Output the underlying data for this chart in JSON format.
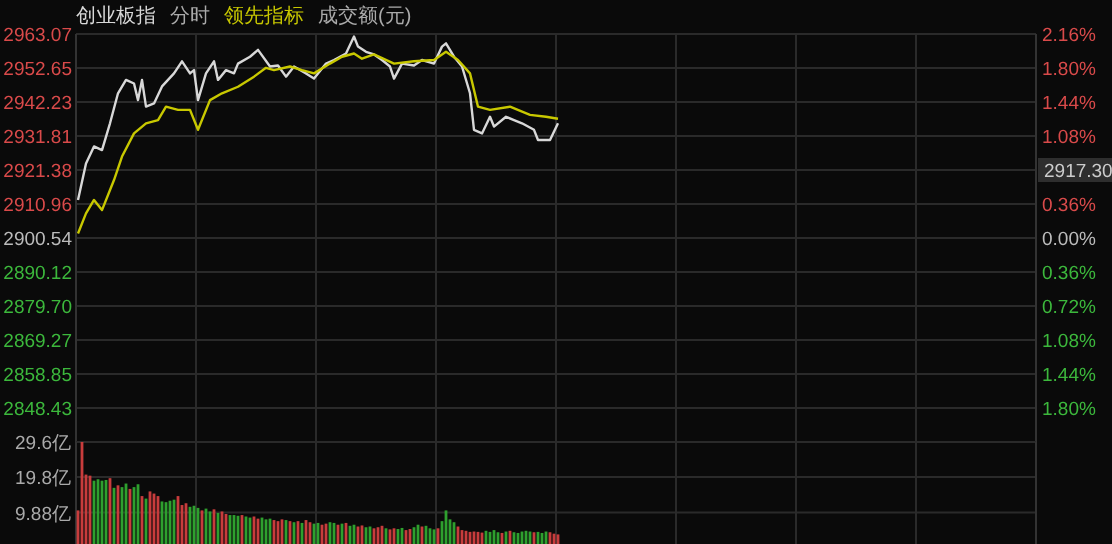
{
  "chart_data": [
    {
      "type": "line",
      "annotations": [
        "分时",
        "成交额(元)",
        "2917.30"
      ],
      "categories": [
        null,
        null,
        null,
        null,
        null,
        null,
        null,
        null,
        null,
        null,
        null,
        null,
        null,
        null,
        null,
        null,
        null,
        null,
        null,
        null,
        null,
        null,
        null,
        null,
        null,
        null,
        null,
        null,
        null,
        null,
        null,
        null,
        null,
        null,
        null,
        null,
        null,
        null,
        null,
        null,
        null,
        null,
        null,
        null,
        null,
        null,
        null,
        null,
        null,
        null,
        null,
        null,
        null,
        null,
        null,
        null,
        null,
        null,
        null,
        null,
        null,
        null,
        null,
        null,
        null,
        null,
        null,
        null,
        null,
        null,
        null,
        null,
        null,
        null,
        null,
        null,
        null,
        null,
        null,
        null,
        null,
        null,
        null,
        null,
        null,
        null,
        null,
        null,
        null,
        null,
        null,
        null,
        null,
        null,
        null,
        null,
        null,
        null,
        null,
        null,
        null,
        null,
        null,
        null,
        null,
        null,
        null,
        null,
        null,
        null,
        null,
        null,
        null,
        null,
        null,
        null,
        null,
        null,
        null,
        null,
        null,
        null,
        null,
        null,
        null,
        null,
        null,
        null,
        null,
        null,
        null,
        null,
        null,
        null,
        null,
        null,
        null,
        null,
        null,
        null,
        null,
        null,
        null,
        null,
        null,
        null,
        null,
        null,
        null,
        null,
        null,
        null,
        null,
        null,
        null,
        null,
        null,
        null,
        null,
        null,
        null,
        null,
        null,
        null,
        null,
        null,
        null,
        null,
        null,
        null,
        null,
        null,
        null,
        null,
        null,
        null,
        null,
        null,
        null,
        null,
        null,
        null,
        null,
        null,
        null,
        null,
        null,
        null,
        null,
        null,
        null,
        null,
        null,
        null,
        null,
        null,
        null,
        null,
        null,
        null,
        null,
        null,
        null,
        null,
        null,
        null,
        null,
        null,
        null,
        null,
        null,
        null,
        null,
        null,
        null,
        null,
        null,
        null,
        null,
        null,
        null,
        null,
        null,
        null,
        null,
        null,
        null,
        null,
        null,
        null,
        null,
        null,
        null,
        null,
        null,
        null,
        null,
        null,
        null,
        null
      ],
      "series": [
        {
          "name": "创业板指",
          "color": "#d8d8d8",
          "values": [
            2912.2,
            null,
            2923.4,
            null,
            2928.6,
            null,
            2927.5,
            null,
            2935.7,
            null,
            2944.9,
            null,
            2949.0,
            null,
            2947.9,
            2942.8,
            2949.0,
            2940.8,
            null,
            2941.8,
            null,
            2947.0,
            null,
            null,
            2951.0,
            null,
            2954.7,
            null,
            2951.0,
            2952.0,
            2942.8,
            null,
            2951.0,
            null,
            2954.7,
            2949.0,
            null,
            2952.0,
            null,
            2951.0,
            2954.0,
            null,
            null,
            2956.1,
            null,
            2958.2,
            null,
            null,
            2953.1,
            null,
            2953.4,
            null,
            2950.0,
            null,
            2953.1,
            null,
            null,
            2951.0,
            null,
            2949.4,
            null,
            null,
            2954.0,
            null,
            2955.1,
            null,
            null,
            2957.1,
            null,
            2962.3,
            2959.2,
            null,
            2957.6,
            null,
            2956.8,
            null,
            2955.1,
            null,
            2953.1,
            2949.4,
            null,
            2954.0,
            null,
            null,
            2953.4,
            null,
            2955.1,
            null,
            null,
            2954.0,
            null,
            2959.2,
            2960.2,
            null,
            2956.1,
            null,
            2953.1,
            null,
            2944.9,
            2933.7,
            null,
            2932.6,
            null,
            2937.7,
            2934.7,
            null,
            null,
            2937.7,
            null,
            2936.7,
            null,
            2935.7,
            null,
            null,
            2933.7,
            2930.6,
            null,
            null,
            2930.6,
            null,
            2935.7,
            null,
            null,
            null,
            null,
            null,
            null,
            null,
            null,
            null,
            null,
            null,
            null,
            null,
            null,
            null,
            null,
            null,
            null,
            null,
            null,
            null,
            null,
            null,
            null,
            null,
            null,
            null,
            null,
            null,
            null,
            null,
            null,
            null,
            null,
            null,
            null,
            null,
            null,
            null,
            null,
            null,
            null,
            null,
            null,
            null,
            null,
            null,
            null,
            null,
            null,
            null,
            null,
            null,
            null,
            null,
            null,
            null,
            null,
            null,
            null,
            null,
            null,
            null,
            null,
            null,
            null,
            null,
            null,
            null,
            null,
            null,
            null,
            null,
            null,
            null,
            null,
            null,
            null,
            null,
            null,
            null,
            null,
            null,
            null,
            null,
            null,
            null,
            null,
            null,
            null,
            null,
            null,
            null,
            null,
            null,
            null,
            null,
            null,
            null,
            null,
            null,
            null,
            null,
            null,
            null,
            null,
            null,
            null,
            null,
            null,
            null,
            null,
            null,
            null,
            null,
            null,
            null,
            null,
            null
          ]
        },
        {
          "name": "领先指标",
          "color": "#c8c800",
          "values": [
            2901.9,
            null,
            2908.1,
            null,
            2912.2,
            null,
            2909.1,
            null,
            null,
            2918.3,
            null,
            2925.5,
            null,
            null,
            2932.6,
            null,
            null,
            2935.7,
            null,
            null,
            2936.7,
            null,
            2940.8,
            null,
            null,
            2939.8,
            null,
            null,
            2939.8,
            null,
            2933.7,
            null,
            null,
            2942.8,
            null,
            null,
            2944.9,
            null,
            null,
            null,
            2946.9,
            null,
            null,
            null,
            2950.0,
            null,
            null,
            2952.7,
            null,
            2952.0,
            null,
            null,
            null,
            2953.1,
            null,
            null,
            2952.0,
            null,
            null,
            2951.0,
            null,
            null,
            null,
            2954.0,
            null,
            null,
            2956.1,
            null,
            null,
            2957.1,
            null,
            2955.5,
            null,
            null,
            2956.8,
            null,
            null,
            null,
            null,
            2954.0,
            null,
            null,
            null,
            null,
            2954.7,
            null,
            null,
            null,
            null,
            2955.1,
            null,
            null,
            2957.6,
            null,
            null,
            2955.1,
            null,
            null,
            2951.0,
            null,
            2940.8,
            null,
            null,
            2939.8,
            null,
            null,
            null,
            null,
            2940.8,
            null,
            null,
            null,
            null,
            2938.3,
            null,
            null,
            null,
            2937.7,
            null,
            null,
            2937.1,
            null,
            null,
            null,
            null,
            null,
            null,
            null,
            null,
            null,
            null,
            null,
            null,
            null,
            null,
            null,
            null,
            null,
            null,
            null,
            null,
            null,
            null,
            null,
            null,
            null,
            null,
            null,
            null,
            null,
            null,
            null,
            null,
            null,
            null,
            null,
            null,
            null,
            null,
            null,
            null,
            null,
            null,
            null,
            null,
            null,
            null,
            null,
            null,
            null,
            null,
            null,
            null,
            null,
            null,
            null,
            null,
            null,
            null,
            null,
            null,
            null,
            null,
            null,
            null,
            null,
            null,
            null,
            null,
            null,
            null,
            null,
            null,
            null,
            null,
            null,
            null,
            null,
            null,
            null,
            null,
            null,
            null,
            null,
            null,
            null,
            null,
            null,
            null,
            null,
            null,
            null,
            null,
            null,
            null,
            null,
            null,
            null,
            null,
            null,
            null,
            null,
            null,
            null,
            null,
            null,
            null,
            null,
            null,
            null,
            null,
            null,
            null,
            null,
            null,
            null,
            null,
            null,
            null,
            null
          ]
        }
      ],
      "ylim": [
        2838.01,
        2963.07
      ],
      "yticks": [
        {
          "value": 2963.07,
          "label": "2963.07"
        },
        {
          "value": 2952.65,
          "label": "2952.65"
        },
        {
          "value": 2942.23,
          "label": "2942.23"
        },
        {
          "value": 2931.81,
          "label": "2931.81"
        },
        {
          "value": 2921.38,
          "label": "2921.38"
        },
        {
          "value": 2910.96,
          "label": "2910.96"
        },
        {
          "value": 2900.54,
          "label": "2900.54"
        },
        {
          "value": 2890.12,
          "label": "2890.12"
        },
        {
          "value": 2879.7,
          "label": "2879.70"
        },
        {
          "value": 2869.27,
          "label": "2869.27"
        },
        {
          "value": 2858.85,
          "label": "2858.85"
        },
        {
          "value": 2848.43,
          "label": "2848.43"
        }
      ],
      "y2lim": [
        -2.16,
        2.16
      ],
      "y2ticks": [
        {
          "value": 2.16,
          "label": "2.16%"
        },
        {
          "value": 1.8,
          "label": "1.80%"
        },
        {
          "value": 1.44,
          "label": "1.44%"
        },
        {
          "value": 1.08,
          "label": "1.08%"
        },
        {
          "value": 0.36,
          "label": "0.36%"
        },
        {
          "value": 0,
          "label": "0.00%"
        },
        {
          "value": -0.36,
          "label": "0.36%"
        },
        {
          "value": -0.72,
          "label": "0.72%"
        },
        {
          "value": -1.08,
          "label": "1.08%"
        },
        {
          "value": -1.44,
          "label": "1.44%"
        },
        {
          "value": -1.8,
          "label": "1.80%"
        }
      ],
      "grid": true,
      "tick_labels": "y"
    },
    {
      "type": "bar",
      "categories": [
        null,
        null,
        null,
        null,
        null,
        null,
        null,
        null,
        null,
        null,
        null,
        null,
        null,
        null,
        null,
        null,
        null,
        null,
        null,
        null,
        null,
        null,
        null,
        null,
        null,
        null,
        null,
        null,
        null,
        null,
        null,
        null,
        null,
        null,
        null,
        null,
        null,
        null,
        null,
        null,
        null,
        null,
        null,
        null,
        null,
        null,
        null,
        null,
        null,
        null,
        null,
        null,
        null,
        null,
        null,
        null,
        null,
        null,
        null,
        null,
        null,
        null,
        null,
        null,
        null,
        null,
        null,
        null,
        null,
        null,
        null,
        null,
        null,
        null,
        null,
        null,
        null,
        null,
        null,
        null,
        null,
        null,
        null,
        null,
        null,
        null,
        null,
        null,
        null,
        null,
        null,
        null,
        null,
        null,
        null,
        null,
        null,
        null,
        null,
        null,
        null,
        null,
        null,
        null,
        null,
        null,
        null,
        null,
        null,
        null,
        null,
        null,
        null,
        null,
        null,
        null,
        null,
        null,
        null,
        null,
        null,
        null,
        null,
        null,
        null,
        null,
        null,
        null,
        null,
        null,
        null,
        null,
        null,
        null,
        null,
        null,
        null,
        null,
        null,
        null,
        null,
        null,
        null,
        null,
        null,
        null,
        null,
        null,
        null,
        null,
        null,
        null,
        null,
        null,
        null,
        null,
        null,
        null,
        null,
        null,
        null,
        null,
        null,
        null,
        null,
        null,
        null,
        null,
        null,
        null,
        null,
        null,
        null,
        null,
        null,
        null,
        null,
        null,
        null,
        null,
        null,
        null,
        null,
        null,
        null,
        null,
        null,
        null,
        null,
        null,
        null,
        null,
        null,
        null,
        null,
        null,
        null,
        null,
        null,
        null,
        null,
        null,
        null,
        null,
        null,
        null,
        null,
        null,
        null,
        null,
        null,
        null,
        null,
        null,
        null,
        null,
        null,
        null,
        null,
        null,
        null,
        null,
        null,
        null,
        null,
        null,
        null,
        null,
        null,
        null,
        null,
        null,
        null,
        null,
        null,
        null,
        null,
        null,
        null,
        null
      ],
      "values": [
        10.5,
        29.6,
        20.5,
        20.2,
        18.8,
        19.2,
        18.8,
        19.0,
        19.5,
        16.8,
        17.5,
        17.0,
        18.0,
        16.5,
        17.0,
        17.8,
        14.5,
        13.8,
        15.8,
        15.2,
        14.5,
        13.0,
        12.8,
        13.2,
        13.5,
        14.5,
        12.0,
        12.5,
        11.5,
        11.8,
        11.2,
        10.5,
        11.0,
        10.2,
        10.8,
        9.8,
        10.2,
        9.5,
        9.2,
        9.2,
        9.0,
        9.2,
        8.8,
        8.5,
        8.8,
        8.2,
        8.5,
        8.0,
        8.2,
        7.8,
        7.5,
        8.0,
        7.8,
        7.5,
        7.2,
        7.5,
        7.0,
        7.8,
        7.2,
        6.8,
        7.0,
        6.5,
        6.8,
        7.2,
        7.0,
        6.5,
        6.8,
        7.0,
        6.2,
        6.5,
        6.0,
        6.3,
        5.8,
        6.0,
        5.5,
        5.8,
        6.2,
        5.5,
        5.2,
        5.5,
        5.3,
        5.6,
        5.0,
        5.3,
        5.8,
        6.5,
        6.0,
        6.2,
        5.5,
        5.2,
        5.5,
        7.5,
        10.5,
        8.0,
        7.2,
        6.0,
        5.0,
        4.8,
        4.5,
        4.6,
        4.5,
        4.3,
        4.8,
        4.5,
        5.0,
        4.4,
        4.2,
        4.6,
        4.8,
        4.4,
        4.2,
        4.6,
        4.8,
        4.6,
        4.4,
        4.5,
        4.2,
        4.6,
        4.4,
        4.0,
        3.8,
        null,
        null,
        null,
        null,
        null,
        null,
        null,
        null,
        null,
        null,
        null,
        null,
        null,
        null,
        null,
        null,
        null,
        null,
        null,
        null,
        null,
        null,
        null,
        null,
        null,
        null,
        null,
        null,
        null,
        null,
        null,
        null,
        null,
        null,
        null,
        null,
        null,
        null,
        null,
        null,
        null,
        null,
        null,
        null,
        null,
        null,
        null,
        null,
        null,
        null,
        null,
        null,
        null,
        null,
        null,
        null,
        null,
        null,
        null,
        null,
        null,
        null,
        null,
        null,
        null,
        null,
        null,
        null,
        null,
        null,
        null,
        null,
        null,
        null,
        null,
        null,
        null,
        null,
        null,
        null,
        null,
        null,
        null,
        null,
        null,
        null,
        null,
        null,
        null,
        null,
        null,
        null,
        null,
        null,
        null,
        null,
        null,
        null,
        null,
        null,
        null,
        null,
        null,
        null,
        null,
        null,
        null,
        null,
        null,
        null,
        null,
        null,
        null,
        null,
        null,
        null,
        null,
        null,
        null
      ],
      "colors": [
        "#c83c3c",
        "#c83c3c",
        "#c83c3c",
        "#c83c3c",
        "#2ea02e",
        "#2ea02e",
        "#2ea02e",
        "#2ea02e",
        "#c83c3c",
        "#2ea02e",
        "#c83c3c",
        "#2ea02e",
        "#2ea02e",
        "#c83c3c",
        "#2ea02e",
        "#2ea02e",
        "#c83c3c",
        "#2ea02e",
        "#c83c3c",
        "#c83c3c",
        "#c83c3c",
        "#2ea02e",
        "#2ea02e",
        "#2ea02e",
        "#2ea02e",
        "#c83c3c",
        "#c83c3c",
        "#c83c3c",
        "#2ea02e",
        "#2ea02e",
        "#2ea02e",
        "#c83c3c",
        "#2ea02e",
        "#2ea02e",
        "#c83c3c",
        "#2ea02e",
        "#c83c3c",
        "#c83c3c",
        "#2ea02e",
        "#2ea02e",
        "#2ea02e",
        "#c83c3c",
        "#2ea02e",
        "#2ea02e",
        "#c83c3c",
        "#c83c3c",
        "#2ea02e",
        "#2ea02e",
        "#2ea02e",
        "#c83c3c",
        "#c83c3c",
        "#c83c3c",
        "#2ea02e",
        "#c83c3c",
        "#2ea02e",
        "#c83c3c",
        "#2ea02e",
        "#c83c3c",
        "#c83c3c",
        "#2ea02e",
        "#2ea02e",
        "#c83c3c",
        "#c83c3c",
        "#2ea02e",
        "#2ea02e",
        "#c83c3c",
        "#2ea02e",
        "#c83c3c",
        "#2ea02e",
        "#2ea02e",
        "#c83c3c",
        "#c83c3c",
        "#2ea02e",
        "#2ea02e",
        "#c83c3c",
        "#c83c3c",
        "#c83c3c",
        "#2ea02e",
        "#c83c3c",
        "#c83c3c",
        "#2ea02e",
        "#2ea02e",
        "#c83c3c",
        "#c83c3c",
        "#2ea02e",
        "#2ea02e",
        "#c83c3c",
        "#2ea02e",
        "#2ea02e",
        "#2ea02e",
        "#c83c3c",
        "#2ea02e",
        "#2ea02e",
        "#2ea02e",
        "#2ea02e",
        "#c83c3c",
        "#c83c3c",
        "#c83c3c",
        "#c83c3c",
        "#c83c3c",
        "#c83c3c",
        "#c83c3c",
        "#2ea02e",
        "#2ea02e",
        "#2ea02e",
        "#2ea02e",
        "#c83c3c",
        "#2ea02e",
        "#c83c3c",
        "#2ea02e",
        "#2ea02e",
        "#2ea02e",
        "#2ea02e",
        "#2ea02e",
        "#c83c3c",
        "#2ea02e",
        "#2ea02e",
        "#2ea02e",
        "#c83c3c",
        "#c83c3c",
        "#c83c3c",
        null,
        null,
        null,
        null,
        null,
        null,
        null,
        null,
        null,
        null,
        null,
        null,
        null,
        null,
        null,
        null,
        null,
        null,
        null,
        null,
        null,
        null,
        null,
        null,
        null,
        null,
        null,
        null,
        null,
        null,
        null,
        null,
        null,
        null,
        null,
        null,
        null,
        null,
        null,
        null,
        null,
        null,
        null,
        null,
        null,
        null,
        null,
        null,
        null,
        null,
        null,
        null,
        null,
        null,
        null,
        null,
        null,
        null,
        null,
        null,
        null,
        null,
        null,
        null,
        null,
        null,
        null,
        null,
        null,
        null,
        null,
        null,
        null,
        null,
        null,
        null,
        null,
        null,
        null,
        null,
        null,
        null,
        null,
        null,
        null,
        null,
        null,
        null,
        null,
        null,
        null,
        null,
        null,
        null,
        null,
        null,
        null,
        null,
        null,
        null,
        null,
        null,
        null,
        null,
        null,
        null,
        null,
        null,
        null,
        null,
        null,
        null,
        null,
        null,
        null,
        null,
        null,
        null,
        null
      ],
      "ylim": [
        0,
        29.6
      ],
      "yticks": [
        {
          "value": 9.88,
          "label": "9.88亿"
        },
        {
          "value": 19.8,
          "label": "19.8亿"
        },
        {
          "value": 29.6,
          "label": "29.6亿"
        }
      ],
      "grid": true,
      "tick_labels": "y"
    }
  ]
}
